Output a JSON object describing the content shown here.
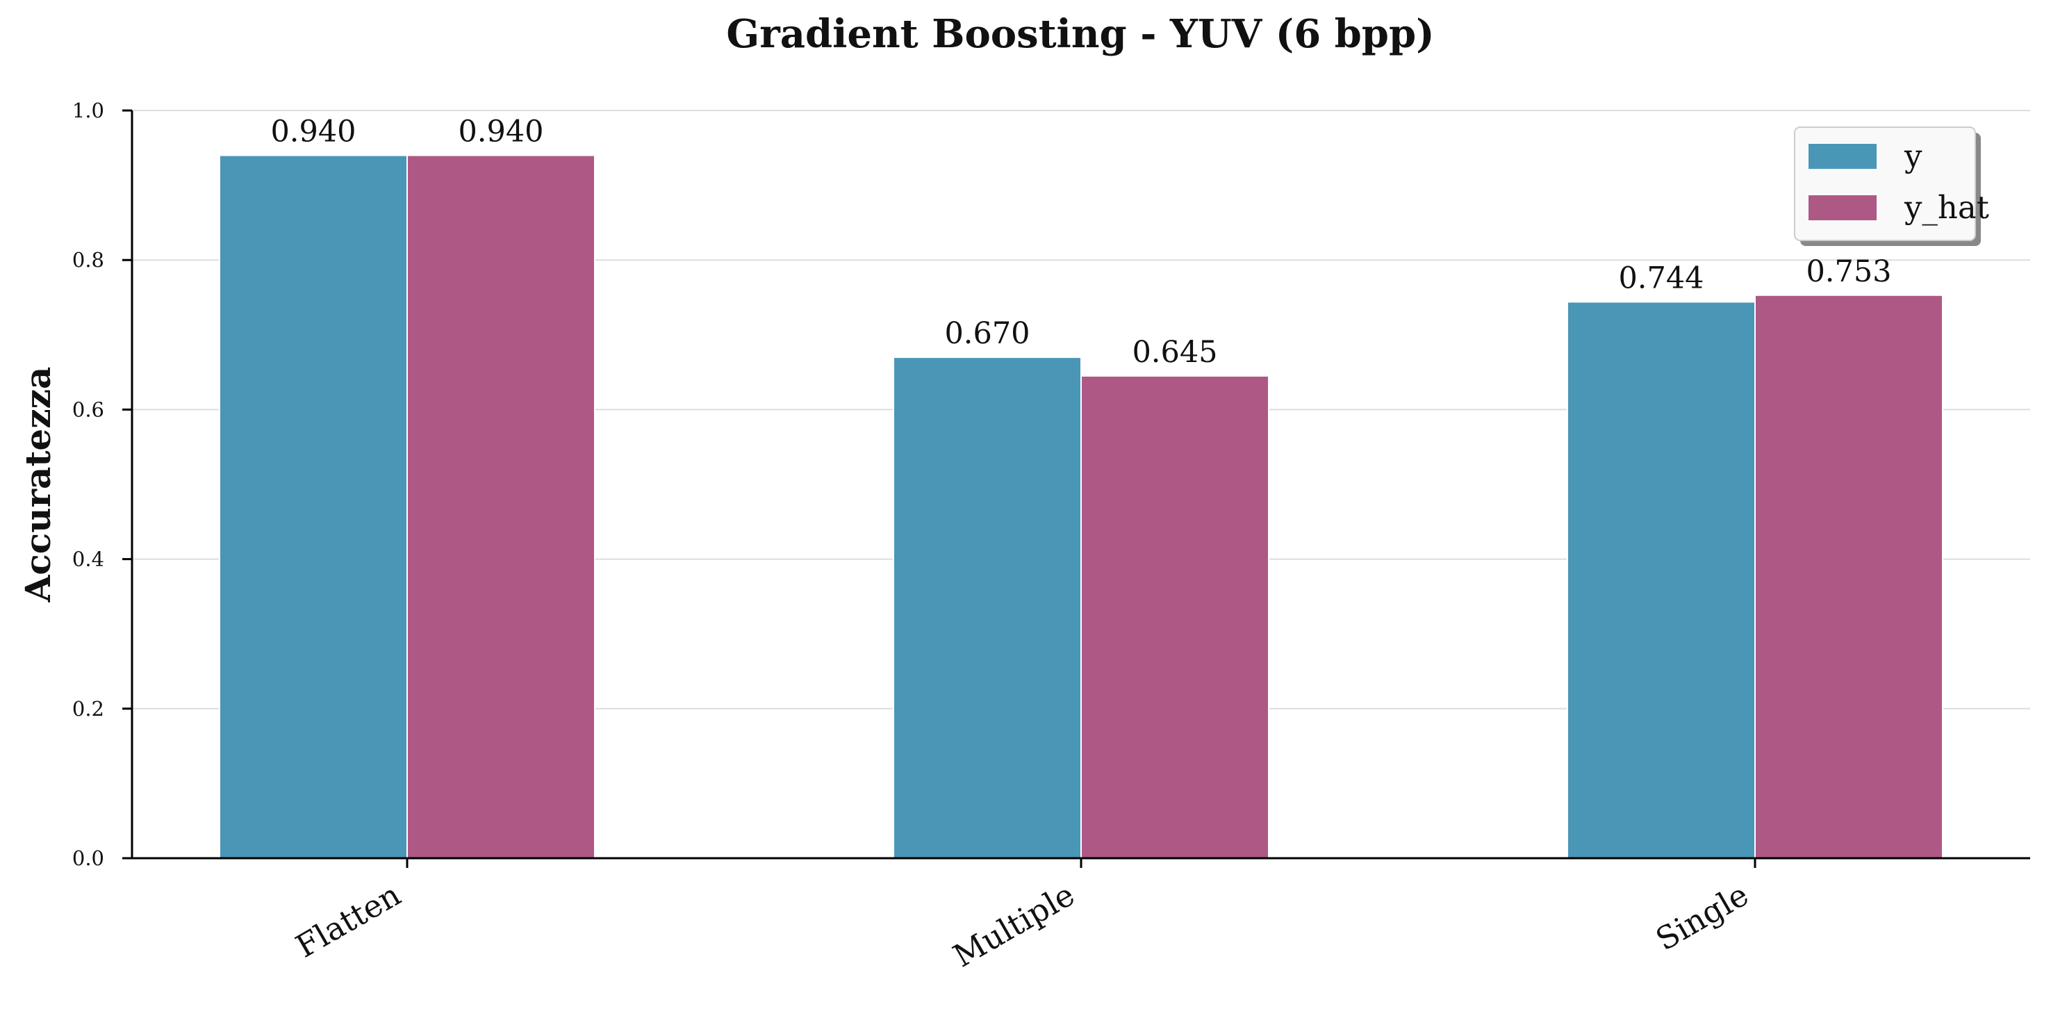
{
  "chart_data": {
    "type": "bar",
    "title": "Gradient Boosting - YUV (6 bpp)",
    "xlabel": "",
    "ylabel": "Accuratezza",
    "categories": [
      "Flatten",
      "Multiple",
      "Single"
    ],
    "series": [
      {
        "name": "y",
        "values": [
          0.94,
          0.67,
          0.744
        ],
        "labels": [
          "0.940",
          "0.670",
          "0.744"
        ],
        "color": "#4A96B7"
      },
      {
        "name": "y_hat",
        "values": [
          0.94,
          0.645,
          0.753
        ],
        "labels": [
          "0.940",
          "0.645",
          "0.753"
        ],
        "color": "#AE5886"
      }
    ],
    "ylim": [
      0,
      1.0
    ],
    "yticks": [
      "0.0",
      "0.2",
      "0.4",
      "0.6",
      "0.8",
      "1.0"
    ],
    "grid": "horizontal",
    "legend_position": "top-right"
  }
}
